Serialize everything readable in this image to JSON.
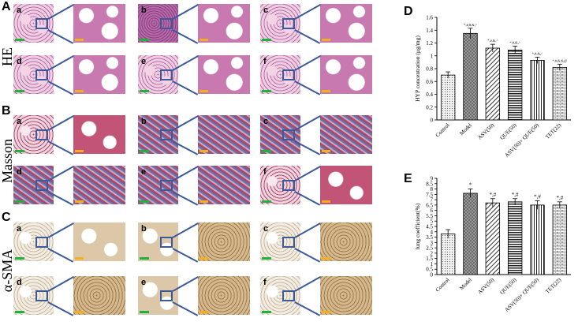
{
  "figure": {
    "panel_letters": [
      "A",
      "B",
      "C",
      "D",
      "E"
    ],
    "row_labels": [
      "HE",
      "Masson",
      "α-SMA"
    ],
    "sub_labels": [
      "a",
      "b",
      "c",
      "d",
      "e",
      "f"
    ]
  },
  "colors": {
    "zoom_box": "#3a5a9a",
    "scale_bar_low": "#1db33c",
    "scale_bar_high": "#f2b01e"
  },
  "chart_data": [
    {
      "type": "bar",
      "panel": "D",
      "categories": [
        "Control",
        "Model",
        "ASV(50)",
        "QUE(50)",
        "ASV(50)+ QUE(50)",
        "TET(22)"
      ],
      "values": [
        0.7,
        1.35,
        1.12,
        1.09,
        0.93,
        0.82
      ],
      "errors": [
        0.05,
        0.08,
        0.06,
        0.06,
        0.05,
        0.05
      ],
      "annotations": [
        "",
        "*,#,$,&,^",
        "*,#,&,^",
        "*,#,&,^",
        "*,#,&,^",
        "*,#,&,$,@"
      ],
      "ylabel": "HYP concentration (μg/mg)",
      "ylim": [
        0,
        1.6
      ],
      "yticks": [
        "0",
        "0.2",
        "0.4",
        "0.6",
        "0.8",
        "1",
        "1.2",
        "1.4",
        "1.6"
      ],
      "grid": false
    },
    {
      "type": "bar",
      "panel": "E",
      "categories": [
        "Control",
        "Model",
        "ASV(50)",
        "QUE(50)",
        "ASV(50)+ QUE(50)",
        "TET(22)"
      ],
      "values": [
        3.8,
        7.6,
        6.7,
        6.8,
        6.5,
        6.5
      ],
      "errors": [
        0.4,
        0.4,
        0.4,
        0.3,
        0.4,
        0.3
      ],
      "annotations": [
        "",
        "*",
        "*,#",
        "*,#",
        "*,#",
        "*,#"
      ],
      "ylabel": "lung coefficient(%)",
      "ylim": [
        0,
        9
      ],
      "yticks": [
        "0",
        "0.5",
        "1",
        "1.5",
        "2",
        "2.5",
        "3",
        "3.5",
        "4",
        "4.5",
        "5",
        "5.5",
        "6",
        "6.5",
        "7",
        "7.5",
        "8",
        "8.5",
        "9"
      ],
      "grid": false
    }
  ]
}
